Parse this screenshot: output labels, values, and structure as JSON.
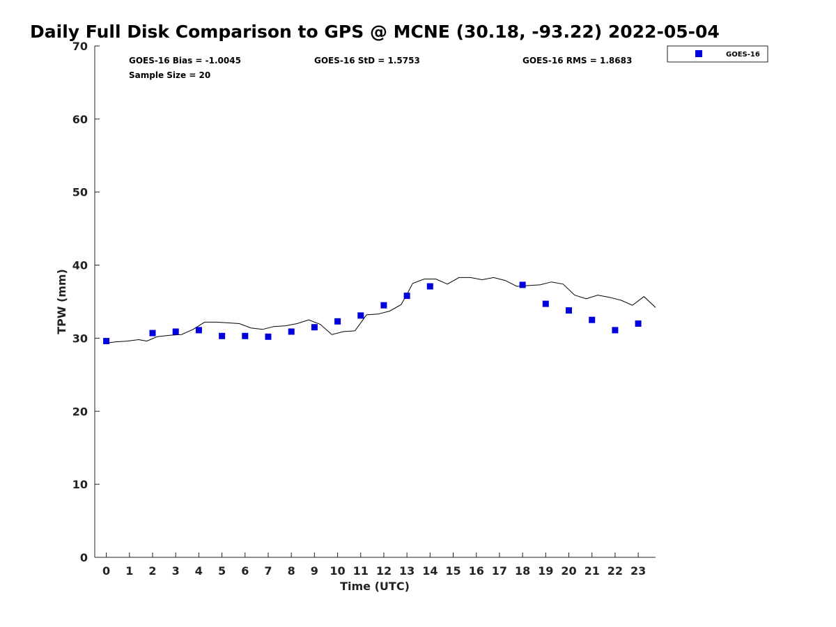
{
  "chart_data": {
    "type": "scatter",
    "title": "Daily Full Disk Comparison to GPS @ MCNE (30.18, -93.22) 2022-05-04",
    "xlabel": "Time (UTC)",
    "ylabel": "TPW (mm)",
    "xlim": [
      -0.5,
      23.75
    ],
    "ylim": [
      0,
      70
    ],
    "x_ticks": [
      "0",
      "1",
      "2",
      "3",
      "4",
      "5",
      "6",
      "7",
      "8",
      "9",
      "10",
      "11",
      "12",
      "13",
      "14",
      "15",
      "16",
      "17",
      "18",
      "19",
      "20",
      "21",
      "22",
      "23"
    ],
    "y_ticks": [
      "0",
      "10",
      "20",
      "30",
      "40",
      "50",
      "60",
      "70"
    ],
    "grid": false,
    "legend_position": "top-right",
    "stats": {
      "bias": "GOES-16 Bias = -1.0045",
      "std": "GOES-16 StD = 1.5753",
      "rms": "GOES-16 RMS = 1.8683",
      "sample_size": "Sample Size = 20"
    },
    "series": [
      {
        "name": "GOES-16",
        "kind": "scatter",
        "marker": "square",
        "color": "#0000dd",
        "x": [
          0,
          2,
          3,
          4,
          5,
          6,
          7,
          8,
          9,
          10,
          11,
          12,
          13,
          14,
          18,
          19,
          20,
          21,
          22,
          23
        ],
        "y": [
          29.6,
          30.7,
          30.9,
          31.1,
          30.3,
          30.3,
          30.2,
          30.9,
          31.5,
          32.3,
          33.1,
          34.5,
          35.8,
          37.1,
          37.3,
          34.7,
          33.8,
          32.5,
          31.1,
          32.0
        ]
      },
      {
        "kind": "line",
        "color": "#000000",
        "x": [
          -0.1,
          0.4,
          0.9,
          1.4,
          1.75,
          2.2,
          2.75,
          3.25,
          3.75,
          4.25,
          4.75,
          5.25,
          5.75,
          6.25,
          6.75,
          7.25,
          7.75,
          8.25,
          8.75,
          9.25,
          9.75,
          10.25,
          10.75,
          11.25,
          11.75,
          12.25,
          12.75,
          13.0,
          13.25,
          13.75,
          14.25,
          14.75,
          15.25,
          15.75,
          16.25,
          16.75,
          17.25,
          17.75,
          18.25,
          18.75,
          19.25,
          19.75,
          20.25,
          20.75,
          21.25,
          21.75,
          22.25,
          22.75,
          23.25,
          23.75
        ],
        "y": [
          29.3,
          29.5,
          29.6,
          29.8,
          29.6,
          30.2,
          30.4,
          30.5,
          31.2,
          32.2,
          32.2,
          32.1,
          32.0,
          31.4,
          31.2,
          31.6,
          31.7,
          32.0,
          32.5,
          31.9,
          30.5,
          30.9,
          31.0,
          33.2,
          33.3,
          33.7,
          34.6,
          36.0,
          37.5,
          38.1,
          38.1,
          37.4,
          38.3,
          38.3,
          38.0,
          38.3,
          37.9,
          37.1,
          37.2,
          37.3,
          37.7,
          37.4,
          35.9,
          35.4,
          35.9,
          35.6,
          35.2,
          34.5,
          35.7,
          34.2
        ]
      }
    ]
  }
}
